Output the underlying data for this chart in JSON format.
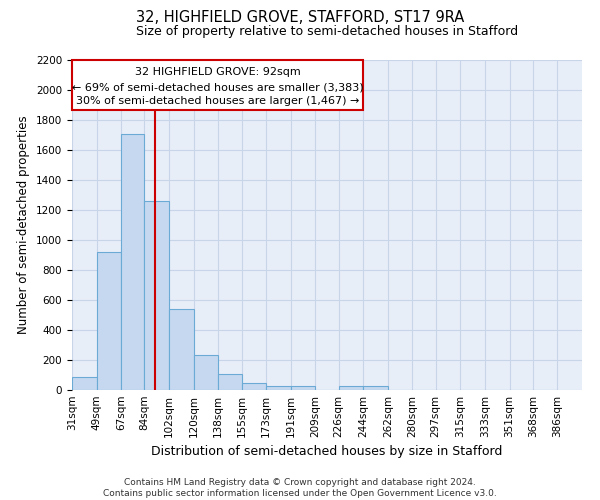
{
  "title1": "32, HIGHFIELD GROVE, STAFFORD, ST17 9RA",
  "title2": "Size of property relative to semi-detached houses in Stafford",
  "xlabel": "Distribution of semi-detached houses by size in Stafford",
  "ylabel": "Number of semi-detached properties",
  "bin_labels": [
    "31sqm",
    "49sqm",
    "67sqm",
    "84sqm",
    "102sqm",
    "120sqm",
    "138sqm",
    "155sqm",
    "173sqm",
    "191sqm",
    "209sqm",
    "226sqm",
    "244sqm",
    "262sqm",
    "280sqm",
    "297sqm",
    "315sqm",
    "333sqm",
    "351sqm",
    "368sqm",
    "386sqm"
  ],
  "bin_edges": [
    31,
    49,
    67,
    84,
    102,
    120,
    138,
    155,
    173,
    191,
    209,
    226,
    244,
    262,
    280,
    297,
    315,
    333,
    351,
    368,
    386
  ],
  "bar_heights": [
    90,
    920,
    1710,
    1260,
    540,
    235,
    105,
    45,
    30,
    25,
    0,
    25,
    25,
    0,
    0,
    0,
    0,
    0,
    0,
    0
  ],
  "bar_color": "#c5d8f0",
  "bar_edge_color": "#6aaad4",
  "grid_color": "#c8d4e8",
  "background_color": "#e8eef8",
  "property_value": 92,
  "red_line_color": "#cc0000",
  "ann_line1": "32 HIGHFIELD GROVE: 92sqm",
  "ann_line2": "← 69% of semi-detached houses are smaller (3,383)",
  "ann_line3": "30% of semi-detached houses are larger (1,467) →",
  "annotation_box_color": "#ffffff",
  "annotation_box_edge": "#cc0000",
  "ylim": [
    0,
    2200
  ],
  "yticks": [
    0,
    200,
    400,
    600,
    800,
    1000,
    1200,
    1400,
    1600,
    1800,
    2000,
    2200
  ],
  "footer_text": "Contains HM Land Registry data © Crown copyright and database right 2024.\nContains public sector information licensed under the Open Government Licence v3.0.",
  "title1_fontsize": 10.5,
  "title2_fontsize": 9,
  "xlabel_fontsize": 9,
  "ylabel_fontsize": 8.5,
  "tick_fontsize": 7.5,
  "annotation_fontsize": 8,
  "footer_fontsize": 6.5
}
